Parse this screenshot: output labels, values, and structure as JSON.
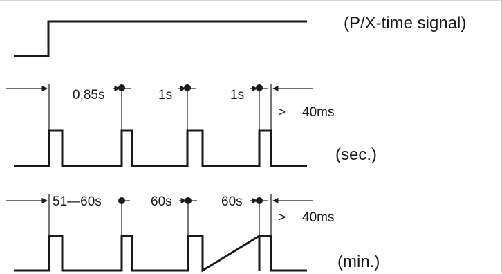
{
  "labels": {
    "signal_title": "(P/X-time signal)",
    "sec_label": "(sec.)",
    "min_label": "(min.)"
  },
  "sec_row": {
    "intervals": [
      "0,85s",
      "1s",
      "1s"
    ],
    "pulse_width": ">",
    "pulse_width_value": "40ms"
  },
  "min_row": {
    "interval_first": "51—60s",
    "intervals": [
      "60s",
      "60s"
    ],
    "pulse_width": ">",
    "pulse_width_value": "40ms"
  },
  "colors": {
    "line": "#1a1a1a",
    "frame": "#d4d4d4"
  }
}
